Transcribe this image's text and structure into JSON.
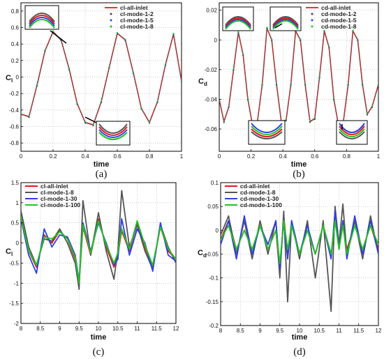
{
  "chart_data": [
    {
      "panel": "(a)",
      "type": "line",
      "xlabel": "time",
      "ylabel_main": "C",
      "ylabel_sub": "l",
      "xlim": [
        0,
        1
      ],
      "ylim": [
        -0.9,
        0.9
      ],
      "xticks": [
        0,
        0.2,
        0.4,
        0.6,
        0.8,
        1
      ],
      "yticks": [
        -0.8,
        -0.6,
        -0.4,
        -0.2,
        0,
        0.2,
        0.4,
        0.6,
        0.8
      ],
      "grid": true,
      "legend_position": "top-right",
      "series": [
        {
          "name": "cl-all-inlet",
          "color": "#e8161b",
          "style": "line"
        },
        {
          "name": "cl-mode-1-2",
          "color": "#444444",
          "style": "markers"
        },
        {
          "name": "cl-mode-1-5",
          "color": "#2e3ee8",
          "style": "markers"
        },
        {
          "name": "cl-mode-1-8",
          "color": "#1fc41f",
          "style": "markers"
        }
      ],
      "x": [
        0,
        0.05,
        0.1,
        0.15,
        0.2,
        0.25,
        0.3,
        0.35,
        0.4,
        0.45,
        0.5,
        0.55,
        0.6,
        0.65,
        0.7,
        0.75,
        0.8,
        0.85,
        0.9,
        0.95,
        1.0
      ],
      "y": [
        -0.45,
        -0.48,
        -0.1,
        0.32,
        0.55,
        0.45,
        0.1,
        -0.32,
        -0.55,
        -0.58,
        -0.3,
        0.12,
        0.53,
        0.45,
        0.05,
        -0.38,
        -0.55,
        -0.3,
        0.15,
        0.52,
        -0.05
      ]
    },
    {
      "panel": "(b)",
      "type": "line",
      "xlabel": "time",
      "ylabel_main": "C",
      "ylabel_sub": "d",
      "xlim": [
        0,
        1
      ],
      "ylim": [
        -0.075,
        0.025
      ],
      "xticks": [
        0,
        0.2,
        0.4,
        0.6,
        0.8,
        1
      ],
      "yticks": [
        -0.06,
        -0.04,
        -0.02,
        0,
        0.02
      ],
      "grid": true,
      "legend_position": "top-right",
      "series": [
        {
          "name": "cd-all-inlet",
          "color": "#e8161b",
          "style": "line"
        },
        {
          "name": "cd-mode-1-2",
          "color": "#444444",
          "style": "markers"
        },
        {
          "name": "cd-mode-1-5",
          "color": "#2e3ee8",
          "style": "markers"
        },
        {
          "name": "cd-mode-1-8",
          "color": "#1fc41f",
          "style": "markers"
        }
      ],
      "x": [
        0,
        0.03,
        0.06,
        0.09,
        0.12,
        0.15,
        0.18,
        0.21,
        0.24,
        0.27,
        0.3,
        0.33,
        0.36,
        0.39,
        0.42,
        0.45,
        0.48,
        0.51,
        0.54,
        0.57,
        0.6,
        0.63,
        0.66,
        0.69,
        0.72,
        0.75,
        0.78,
        0.81,
        0.84,
        0.87,
        0.9,
        0.93,
        0.96,
        1.0
      ],
      "y": [
        -0.04,
        -0.055,
        -0.045,
        -0.02,
        0.005,
        -0.01,
        -0.04,
        -0.058,
        -0.055,
        -0.03,
        0.008,
        0.0,
        -0.03,
        -0.055,
        -0.054,
        -0.03,
        0.006,
        0.0,
        -0.03,
        -0.055,
        -0.053,
        -0.025,
        0.006,
        -0.005,
        -0.04,
        -0.058,
        -0.055,
        -0.03,
        0.006,
        0.0,
        -0.03,
        -0.05,
        -0.045,
        -0.03
      ]
    },
    {
      "panel": "(c)",
      "type": "line",
      "xlabel": "time",
      "ylabel_main": "C",
      "ylabel_sub": "l",
      "xlim": [
        8,
        12
      ],
      "ylim": [
        -2,
        1.5
      ],
      "xticks": [
        8,
        8.5,
        9,
        9.5,
        10,
        10.5,
        11,
        11.5,
        12
      ],
      "yticks": [
        -2,
        -1.5,
        -1,
        -0.5,
        0,
        0.5,
        1,
        1.5
      ],
      "grid": true,
      "legend_position": "top-left",
      "x": [
        8.0,
        8.2,
        8.4,
        8.6,
        8.8,
        9.0,
        9.2,
        9.4,
        9.5,
        9.6,
        9.8,
        10.0,
        10.2,
        10.4,
        10.5,
        10.6,
        10.8,
        11.0,
        11.2,
        11.4,
        11.6,
        11.8,
        12.0
      ],
      "series": [
        {
          "name": "cl-all-inlet",
          "color": "#e8161b",
          "values": [
            0.7,
            -0.2,
            -0.6,
            0.2,
            0.0,
            0.3,
            0.1,
            -0.4,
            -1.0,
            0.4,
            -0.3,
            0.6,
            -0.1,
            -0.6,
            -0.3,
            0.3,
            -0.2,
            0.5,
            -0.1,
            -0.6,
            0.4,
            -0.2,
            -0.4
          ]
        },
        {
          "name": "cl-mode-1-8",
          "color": "#555555",
          "values": [
            0.8,
            -0.1,
            -0.55,
            0.1,
            0.05,
            0.35,
            0.0,
            -0.5,
            -1.15,
            1.05,
            -0.3,
            0.75,
            -0.2,
            -0.9,
            -0.2,
            1.3,
            -0.1,
            0.45,
            -0.2,
            -0.65,
            0.45,
            -0.1,
            -0.5
          ]
        },
        {
          "name": "cl-mode-1-30",
          "color": "#2e3ee8",
          "values": [
            0.6,
            -0.3,
            -0.75,
            0.35,
            -0.1,
            0.2,
            0.15,
            -0.3,
            -0.95,
            0.5,
            -0.2,
            0.5,
            0.0,
            -0.55,
            -0.4,
            0.6,
            -0.3,
            0.35,
            0.0,
            -0.7,
            0.5,
            -0.3,
            -0.45
          ]
        },
        {
          "name": "cl-mode-1-100",
          "color": "#1fc41f",
          "values": [
            0.65,
            -0.2,
            -0.55,
            0.15,
            0.1,
            0.28,
            0.1,
            -0.35,
            -1.0,
            0.45,
            -0.25,
            0.55,
            -0.05,
            -0.5,
            -0.25,
            0.35,
            -0.15,
            0.55,
            -0.05,
            -0.55,
            0.4,
            -0.15,
            -0.4
          ]
        }
      ]
    },
    {
      "panel": "(d)",
      "type": "line",
      "xlabel": "time",
      "ylabel_main": "C",
      "ylabel_sub": "d",
      "xlim": [
        8,
        12
      ],
      "ylim": [
        -0.2,
        0.1
      ],
      "xticks": [
        8,
        8.5,
        9,
        9.5,
        10,
        10.5,
        11,
        11.5,
        12
      ],
      "yticks": [
        -0.2,
        -0.15,
        -0.1,
        -0.05,
        0,
        0.05,
        0.1
      ],
      "grid": true,
      "legend_position": "top-left",
      "x": [
        8.0,
        8.2,
        8.4,
        8.6,
        8.8,
        9.0,
        9.2,
        9.4,
        9.5,
        9.6,
        9.7,
        9.8,
        10.0,
        10.2,
        10.4,
        10.6,
        10.8,
        10.9,
        11.0,
        11.1,
        11.2,
        11.4,
        11.6,
        11.8,
        12.0
      ],
      "series": [
        {
          "name": "cd-all-inlet",
          "color": "#e8161b",
          "values": [
            -0.02,
            0.02,
            -0.04,
            0.0,
            -0.04,
            0.01,
            -0.04,
            0.0,
            -0.09,
            0.03,
            -0.05,
            0.01,
            -0.05,
            0.0,
            -0.05,
            0.01,
            -0.05,
            0.02,
            -0.03,
            0.01,
            -0.04,
            0.01,
            -0.04,
            0.01,
            -0.04
          ]
        },
        {
          "name": "cd-mode-1-8",
          "color": "#555555",
          "values": [
            -0.01,
            0.03,
            -0.05,
            0.02,
            -0.06,
            0.02,
            -0.05,
            0.02,
            -0.1,
            0.04,
            -0.15,
            0.02,
            -0.06,
            0.02,
            -0.1,
            0.02,
            -0.17,
            0.05,
            -0.03,
            0.055,
            -0.05,
            0.02,
            -0.06,
            0.03,
            -0.05
          ]
        },
        {
          "name": "cd-mode-1-30",
          "color": "#2e3ee8",
          "values": [
            -0.03,
            0.02,
            -0.06,
            0.03,
            -0.05,
            0.01,
            -0.03,
            0.02,
            -0.08,
            0.02,
            -0.06,
            0.02,
            -0.05,
            0.01,
            -0.05,
            0.01,
            -0.06,
            0.04,
            -0.04,
            0.02,
            -0.06,
            0.03,
            -0.05,
            0.02,
            -0.05
          ]
        },
        {
          "name": "cd-mode-1-100",
          "color": "#1fc41f",
          "values": [
            -0.02,
            0.01,
            -0.04,
            0.0,
            -0.04,
            0.01,
            -0.04,
            0.0,
            -0.07,
            0.02,
            -0.04,
            0.01,
            -0.05,
            0.0,
            -0.05,
            0.01,
            -0.05,
            0.02,
            -0.04,
            0.01,
            -0.05,
            0.01,
            -0.04,
            0.01,
            -0.03
          ]
        }
      ]
    }
  ]
}
